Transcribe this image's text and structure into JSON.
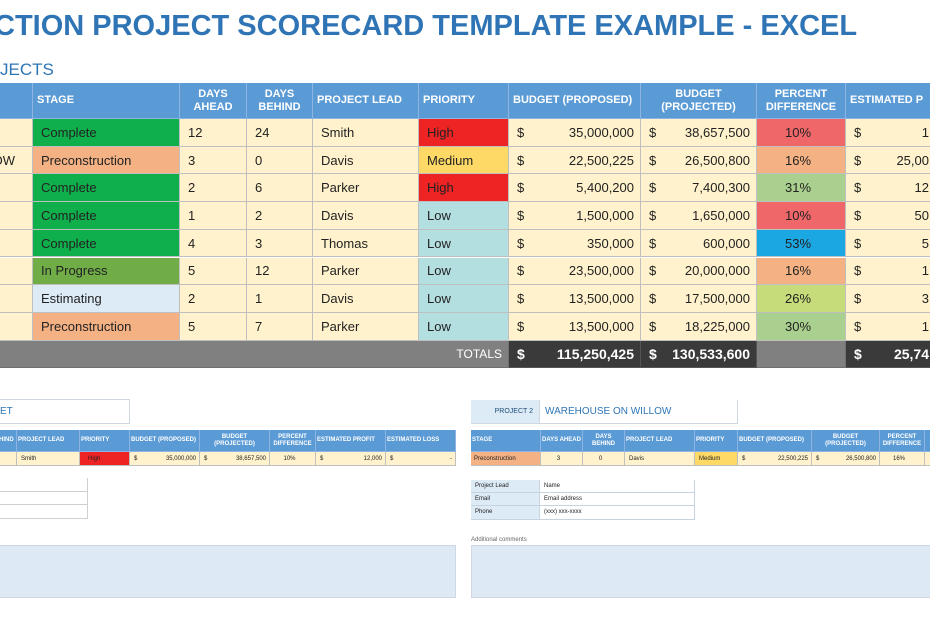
{
  "title": "CTION PROJECT SCORECARD TEMPLATE EXAMPLE - EXCEL",
  "section_title": "JECTS",
  "currency_symbol": "$",
  "main_table": {
    "headers": [
      "STAGE",
      "DAYS AHEAD",
      "DAYS BEHIND",
      "PROJECT LEAD",
      "PRIORITY",
      "BUDGET (PROPOSED)",
      "BUDGET (PROJECTED)",
      "PERCENT DIFFERENCE",
      "ESTIMATED P"
    ],
    "rows": [
      {
        "stage": "Complete",
        "stage_color": "#0fb04c",
        "days_ahead": "12",
        "days_behind": "24",
        "lead": "Smith",
        "priority": "High",
        "priority_color": "#ee2324",
        "budget_proposed": "35,000,000",
        "budget_projected": "38,657,500",
        "percent_difference": "10%",
        "percent_color": "#f0676a",
        "estimated_profit": "1"
      },
      {
        "project": "OW",
        "stage": "Preconstruction",
        "stage_color": "#f4b183",
        "days_ahead": "3",
        "days_behind": "0",
        "lead": "Davis",
        "priority": "Medium",
        "priority_color": "#ffd966",
        "budget_proposed": "22,500,225",
        "budget_projected": "26,500,800",
        "percent_difference": "16%",
        "percent_color": "#f4b183",
        "estimated_profit": "25,00"
      },
      {
        "stage": "Complete",
        "stage_color": "#0fb04c",
        "days_ahead": "2",
        "days_behind": "6",
        "lead": "Parker",
        "priority": "High",
        "priority_color": "#ee2324",
        "budget_proposed": "5,400,200",
        "budget_projected": "7,400,300",
        "percent_difference": "31%",
        "percent_color": "#a9d08e",
        "estimated_profit": "12"
      },
      {
        "stage": "Complete",
        "stage_color": "#0fb04c",
        "days_ahead": "1",
        "days_behind": "2",
        "lead": "Davis",
        "priority": "Low",
        "priority_color": "#b4dfe0",
        "budget_proposed": "1,500,000",
        "budget_projected": "1,650,000",
        "percent_difference": "10%",
        "percent_color": "#f0676a",
        "estimated_profit": "50"
      },
      {
        "stage": "Complete",
        "stage_color": "#0fb04c",
        "days_ahead": "4",
        "days_behind": "3",
        "lead": "Thomas",
        "priority": "Low",
        "priority_color": "#b4dfe0",
        "budget_proposed": "350,000",
        "budget_projected": "600,000",
        "percent_difference": "53%",
        "percent_color": "#1ba7e1",
        "estimated_profit": "5"
      },
      {
        "stage": "In Progress",
        "stage_color": "#70ad47",
        "days_ahead": "5",
        "days_behind": "12",
        "lead": "Parker",
        "priority": "Low",
        "priority_color": "#b4dfe0",
        "budget_proposed": "23,500,000",
        "budget_projected": "20,000,000",
        "percent_difference": "16%",
        "percent_color": "#f4b183",
        "estimated_profit": "1"
      },
      {
        "stage": "Estimating",
        "stage_color": "#ddebf7",
        "days_ahead": "2",
        "days_behind": "1",
        "lead": "Davis",
        "priority": "Low",
        "priority_color": "#b4dfe0",
        "budget_proposed": "13,500,000",
        "budget_projected": "17,500,000",
        "percent_difference": "26%",
        "percent_color": "#c6dc7a",
        "estimated_profit": "3"
      },
      {
        "stage": "Preconstruction",
        "stage_color": "#f4b183",
        "days_ahead": "5",
        "days_behind": "7",
        "lead": "Parker",
        "priority": "Low",
        "priority_color": "#b4dfe0",
        "budget_proposed": "13,500,000",
        "budget_projected": "18,225,000",
        "percent_difference": "30%",
        "percent_color": "#a9d08e",
        "estimated_profit": "1"
      }
    ],
    "totals": {
      "label": "TOTALS",
      "budget_proposed": "115,250,425",
      "budget_projected": "130,533,600",
      "estimated_profit": "25,74"
    }
  },
  "project_1": {
    "name": "ET",
    "headers": [
      "HIND",
      "PROJECT LEAD",
      "PRIORITY",
      "BUDGET (PROPOSED)",
      "BUDGET (PROJECTED)",
      "PERCENT DIFFERENCE",
      "ESTIMATED PROFIT",
      "ESTIMATED LOSS"
    ],
    "row": {
      "lead": "Smith",
      "priority": "High",
      "priority_color": "#ee2324",
      "budget_proposed": "35,000,000",
      "budget_projected": "38,657,500",
      "percent_difference": "10%",
      "estimated_profit": "12,000",
      "estimated_loss": "-"
    }
  },
  "project_2": {
    "label": "PROJECT 2",
    "name": "WAREHOUSE ON WILLOW",
    "headers": [
      "STAGE",
      "DAYS AHEAD",
      "DAYS BEHIND",
      "PROJECT LEAD",
      "PRIORITY",
      "BUDGET (PROPOSED)",
      "BUDGET (PROJECTED)",
      "PERCENT DIFFERENCE"
    ],
    "row": {
      "stage": "Preconstruction",
      "stage_color": "#f4b183",
      "days_ahead": "3",
      "days_behind": "0",
      "lead": "Davis",
      "priority": "Medium",
      "priority_color": "#ffd966",
      "budget_proposed": "22,500,225",
      "budget_projected": "26,500,800",
      "percent_difference": "16%"
    },
    "contacts": [
      {
        "label": "Project Lead",
        "value": "Name"
      },
      {
        "label": "Email",
        "value": "Email address"
      },
      {
        "label": "Phone",
        "value": "(xxx) xxx-xxxx"
      }
    ],
    "comments_label": "Additional comments"
  }
}
